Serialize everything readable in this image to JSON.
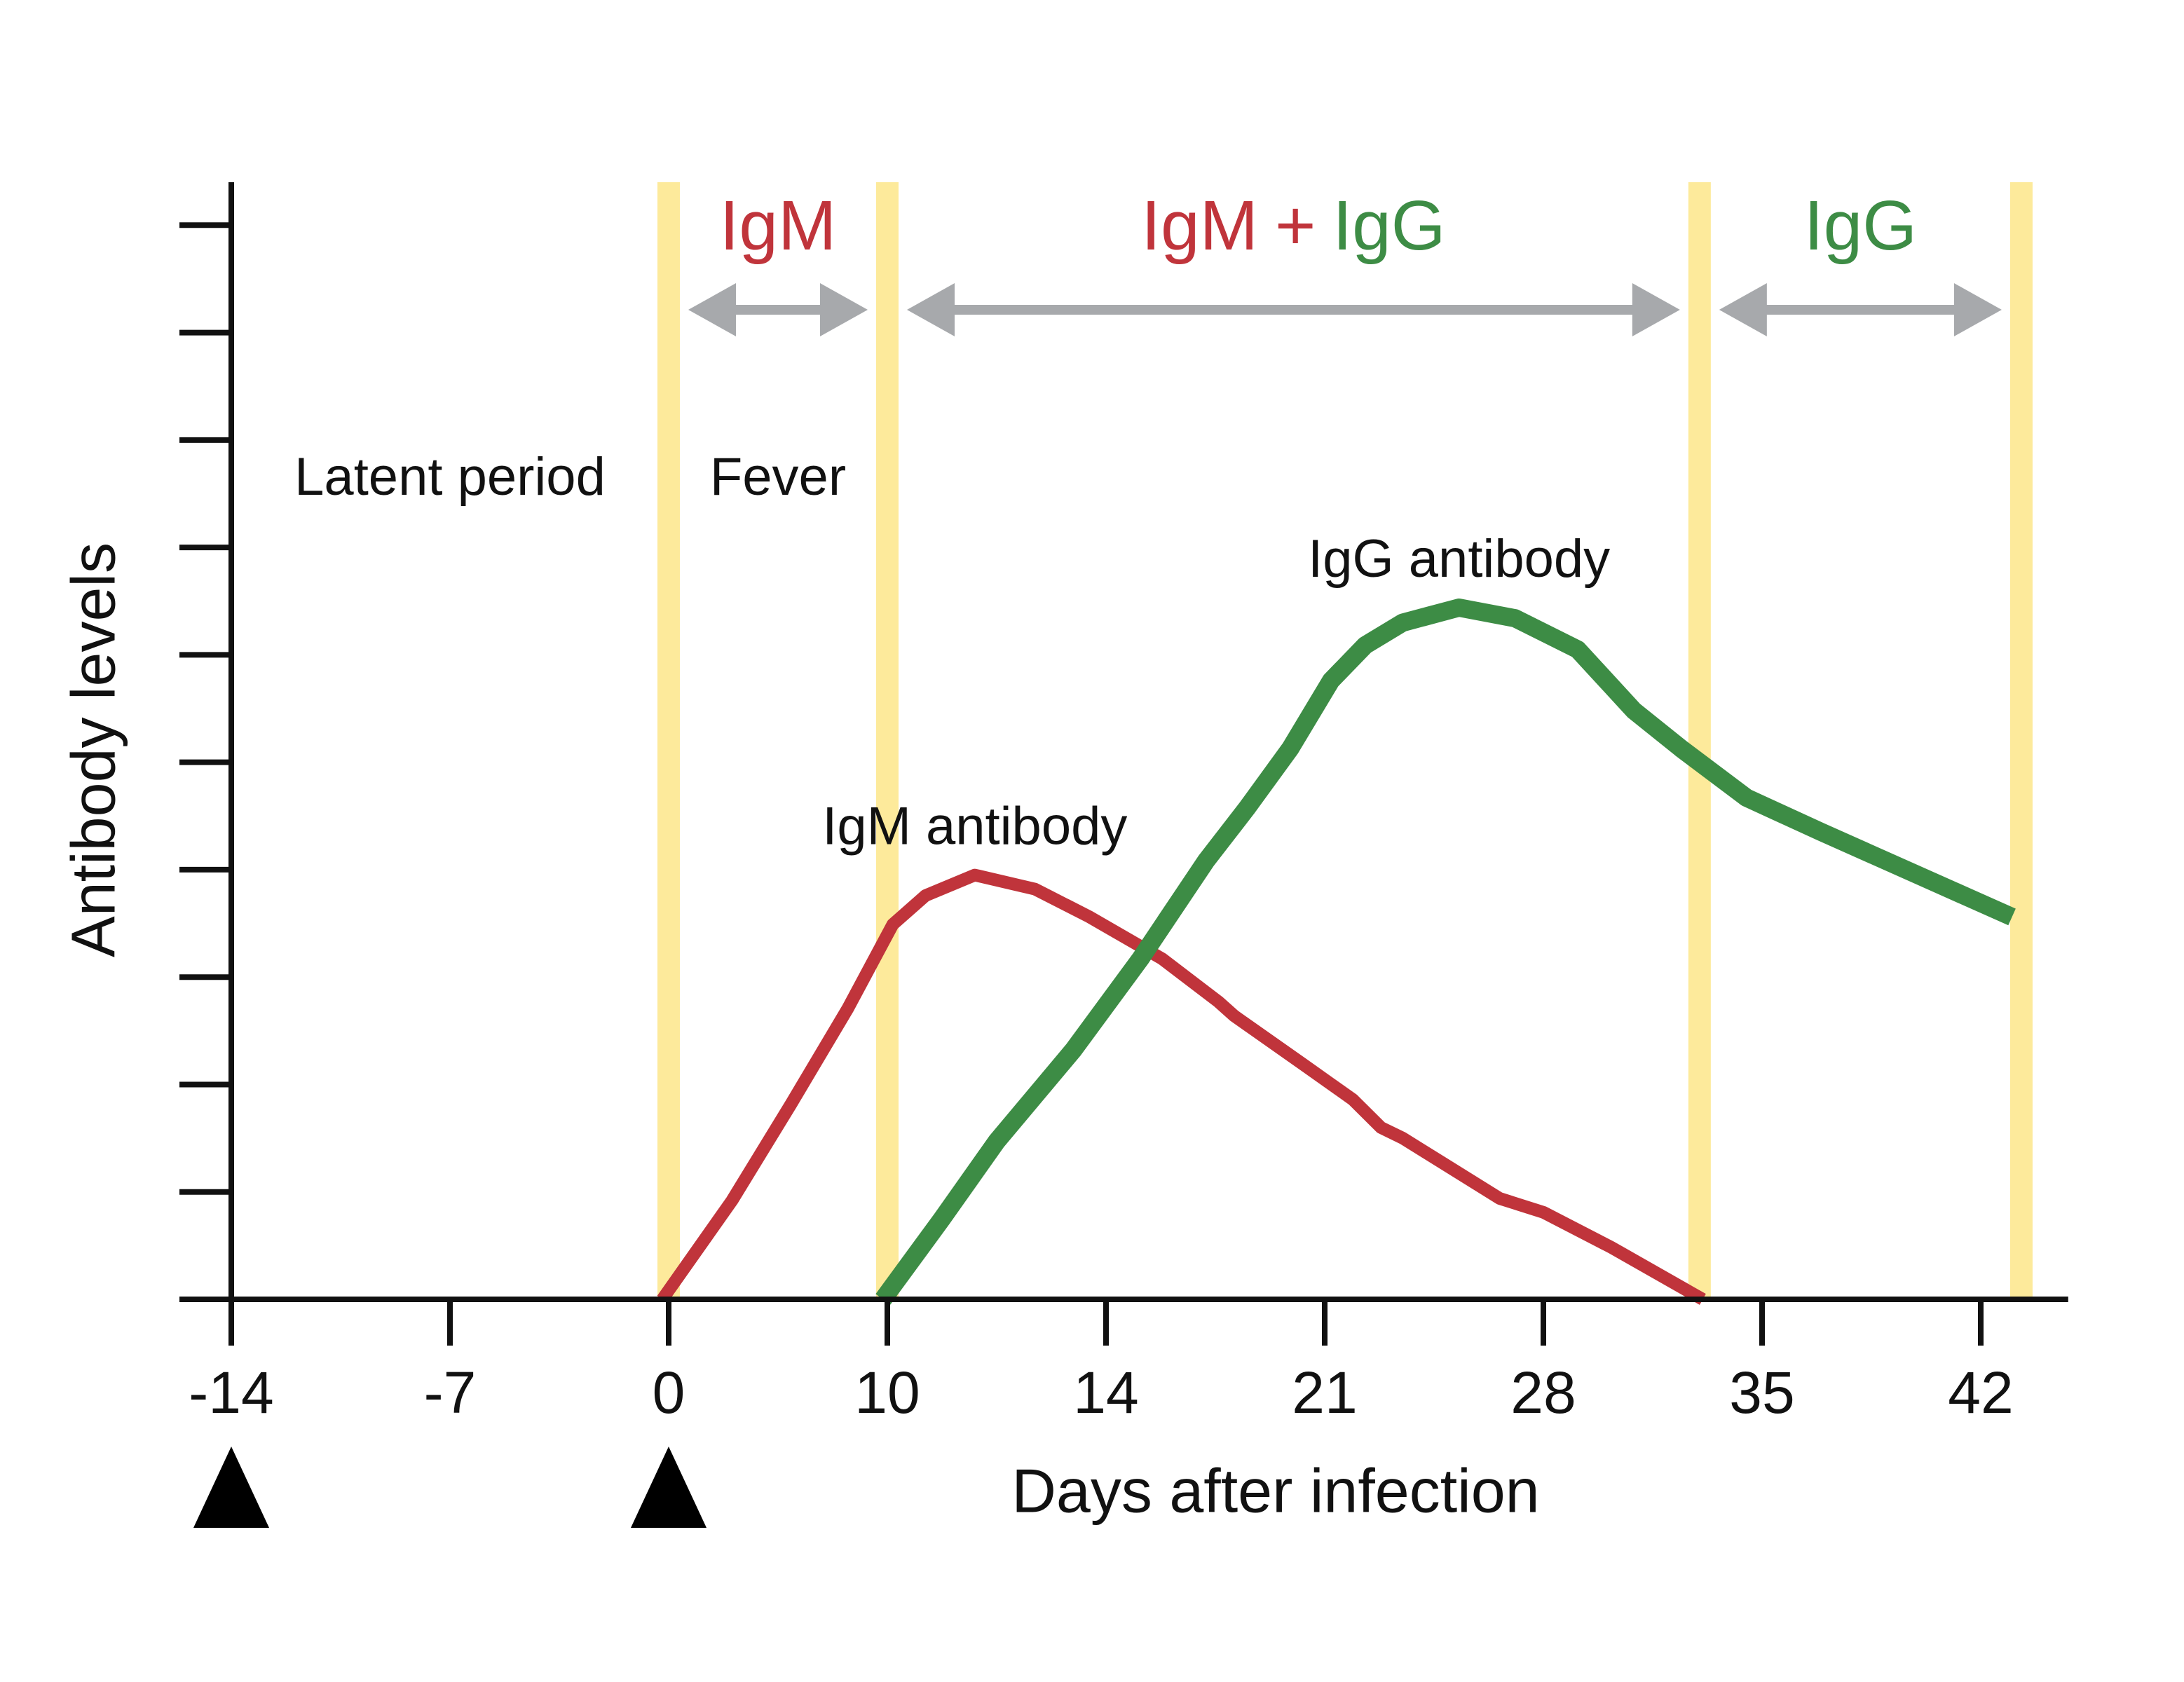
{
  "chart_data": {
    "type": "line",
    "x_label": "Days after infection",
    "y_label": "Antibody levels",
    "xlim": [
      -14,
      44.8
    ],
    "xticks": [
      -14,
      -7,
      0,
      10,
      14,
      21,
      28,
      35,
      42
    ],
    "ylim": [
      0,
      10.4
    ],
    "yticks": [
      0,
      1,
      2,
      3,
      4,
      5,
      6,
      7,
      8,
      9,
      10
    ],
    "bands": [
      0,
      10,
      33,
      43.3
    ],
    "band_color": "#fdea9b",
    "arrow_color": "#a7a9ac",
    "markers": [
      -14,
      0
    ],
    "periods": [
      "Latent period",
      "Fever"
    ],
    "phases": [
      [
        {
          "text": "IgM",
          "color": "#c0343b"
        }
      ],
      [
        {
          "text": "IgM",
          "color": "#c0343b"
        },
        {
          "text": "+",
          "color": "#c0343b"
        },
        {
          "text": "IgG",
          "color": "#3d8c45"
        }
      ],
      [
        {
          "text": "IgG",
          "color": "#3d8c45"
        }
      ]
    ],
    "series": [
      {
        "name": "IgM antibody",
        "color": "#c0343b",
        "width": 9,
        "x": [
          -0.2,
          2.9,
          5.6,
          8.2,
          10.1,
          10.7,
          11.6,
          12.7,
          13.7,
          15.8,
          17.6,
          18.1,
          20.3,
          21.9,
          22.8,
          23.5,
          26.6,
          28.0,
          30.2,
          33.1
        ],
        "values": [
          0,
          0.92,
          1.82,
          2.71,
          3.49,
          3.76,
          3.95,
          3.82,
          3.56,
          3.17,
          2.77,
          2.64,
          2.19,
          1.86,
          1.6,
          1.5,
          0.94,
          0.81,
          0.48,
          0
        ]
      },
      {
        "name": "IgG antibody",
        "color": "#3d8c45",
        "width": 13,
        "x": [
          9.8,
          11.0,
          12.0,
          13.4,
          15.1,
          17.2,
          18.5,
          19.9,
          21.2,
          22.3,
          23.5,
          25.3,
          27.1,
          29.1,
          30.9,
          32.4,
          34.5,
          36.9,
          43.0
        ],
        "values": [
          0,
          0.75,
          1.47,
          2.32,
          3.17,
          4.08,
          4.57,
          5.13,
          5.76,
          6.09,
          6.3,
          6.44,
          6.34,
          6.05,
          5.48,
          5.13,
          4.67,
          4.35,
          3.56
        ]
      }
    ]
  }
}
